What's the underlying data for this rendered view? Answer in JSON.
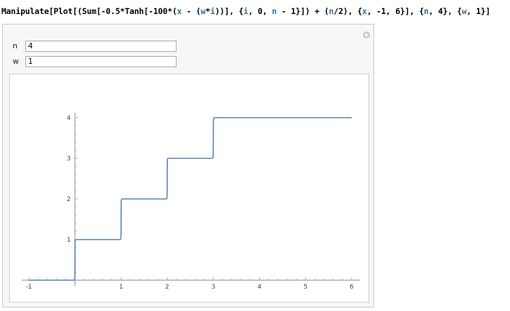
{
  "code": {
    "parts": [
      {
        "t": "Manipulate[Plot[(Sum[-0.5*Tanh[-100*(",
        "c": "p"
      },
      {
        "t": "x",
        "c": "v"
      },
      {
        "t": " - (",
        "c": "p"
      },
      {
        "t": "w",
        "c": "v"
      },
      {
        "t": "*",
        "c": "p"
      },
      {
        "t": "i",
        "c": "v"
      },
      {
        "t": "))], {",
        "c": "p"
      },
      {
        "t": "i",
        "c": "v"
      },
      {
        "t": ", 0, ",
        "c": "p"
      },
      {
        "t": "n",
        "c": "v"
      },
      {
        "t": " - 1}]) + (",
        "c": "p"
      },
      {
        "t": "n",
        "c": "v"
      },
      {
        "t": "/2), {",
        "c": "p"
      },
      {
        "t": "x",
        "c": "v"
      },
      {
        "t": ", -1, 6}], {",
        "c": "p"
      },
      {
        "t": "n",
        "c": "v"
      },
      {
        "t": ", 4}, {",
        "c": "p"
      },
      {
        "t": "w",
        "c": "v"
      },
      {
        "t": ", 1}]",
        "c": "p"
      }
    ]
  },
  "controls": [
    {
      "label": "n",
      "value": "4"
    },
    {
      "label": "w",
      "value": "1"
    }
  ],
  "icons": {
    "options": "plus-icon"
  },
  "chart_data": {
    "type": "line",
    "title": "",
    "xlabel": "",
    "ylabel": "",
    "xlim": [
      -1,
      6
    ],
    "ylim": [
      0,
      4
    ],
    "x_ticks": [
      "-1",
      "1",
      "2",
      "3",
      "4",
      "5",
      "6"
    ],
    "y_ticks": [
      "1",
      "2",
      "3",
      "4"
    ],
    "series": [
      {
        "color": "#5b80b2",
        "x": [
          -1,
          0,
          1,
          2,
          3,
          6
        ],
        "y": [
          0,
          1,
          2,
          3,
          4,
          4
        ],
        "shape": "step"
      }
    ]
  }
}
